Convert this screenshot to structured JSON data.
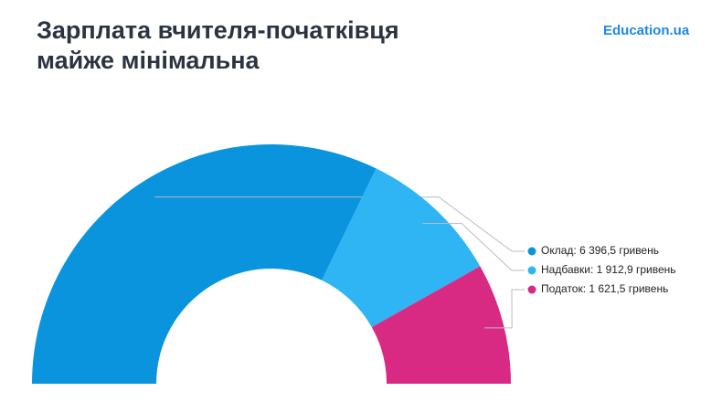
{
  "chart_data": {
    "type": "half-donut",
    "title_lines": [
      "Зарплата вчителя-початківця",
      "майже мінімальна"
    ],
    "logo": "Education.ua",
    "values": [
      6396.5,
      1912.9,
      1621.5
    ],
    "value_labels": [
      "Оклад: 6 396,5 гривень",
      "Надбавки: 1 912,9 гривень",
      "Податок: 1 621,5 гривень"
    ],
    "colors": [
      "#0a94dd",
      "#2fb4f4",
      "#d92a83"
    ]
  }
}
